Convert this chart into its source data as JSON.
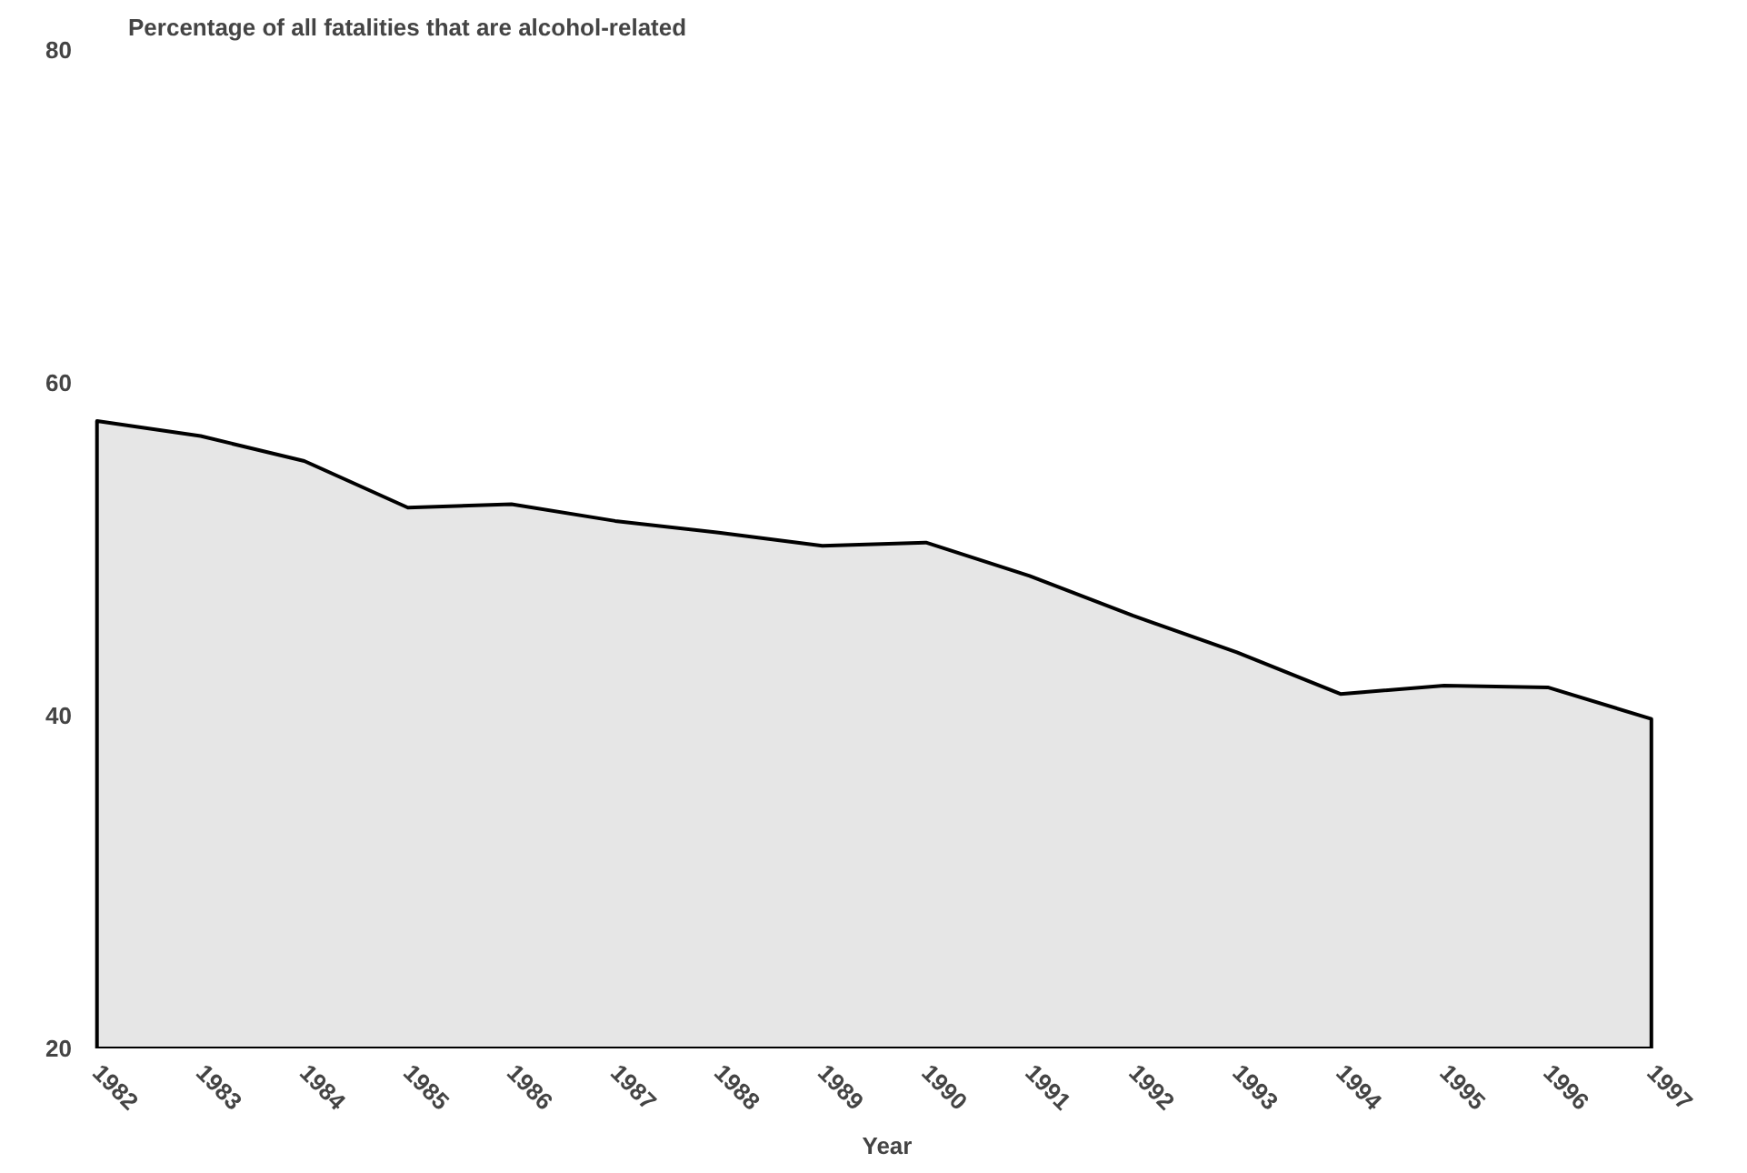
{
  "chart_data": {
    "type": "area",
    "title": "Percentage of all fatalities that are alcohol-related",
    "xlabel": "Year",
    "categories": [
      "1982",
      "1983",
      "1984",
      "1985",
      "1986",
      "1987",
      "1988",
      "1989",
      "1990",
      "1991",
      "1992",
      "1993",
      "1994",
      "1995",
      "1996",
      "1997"
    ],
    "series": [
      {
        "color": "#e6e6e6",
        "values": [
          57.7,
          56.8,
          55.3,
          52.5,
          52.7,
          51.7,
          51.0,
          50.2,
          50.4,
          48.4,
          46.0,
          43.8,
          41.3,
          41.8,
          41.7,
          39.8
        ]
      }
    ],
    "ylim": [
      20,
      80
    ],
    "yticks": [
      20,
      40,
      60,
      80
    ],
    "grid": false
  }
}
